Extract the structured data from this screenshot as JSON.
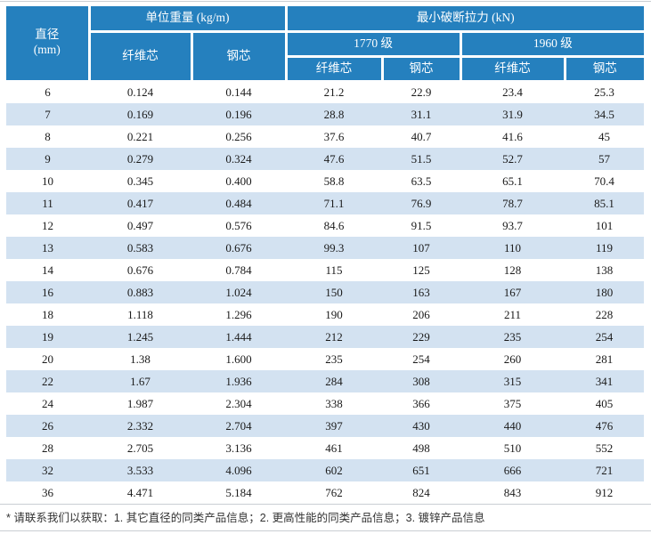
{
  "table": {
    "header": {
      "diameter_line1": "直径",
      "diameter_line2": "(mm)",
      "unit_weight": "单位重量 (kg/m)",
      "breaking_force": "最小破断拉力 (kN)",
      "grade_1770": "1770 级",
      "grade_1960": "1960 级",
      "fiber_core": "纤维芯",
      "steel_core": "钢芯"
    },
    "rows": [
      [
        "6",
        "0.124",
        "0.144",
        "21.2",
        "22.9",
        "23.4",
        "25.3"
      ],
      [
        "7",
        "0.169",
        "0.196",
        "28.8",
        "31.1",
        "31.9",
        "34.5"
      ],
      [
        "8",
        "0.221",
        "0.256",
        "37.6",
        "40.7",
        "41.6",
        "45"
      ],
      [
        "9",
        "0.279",
        "0.324",
        "47.6",
        "51.5",
        "52.7",
        "57"
      ],
      [
        "10",
        "0.345",
        "0.400",
        "58.8",
        "63.5",
        "65.1",
        "70.4"
      ],
      [
        "11",
        "0.417",
        "0.484",
        "71.1",
        "76.9",
        "78.7",
        "85.1"
      ],
      [
        "12",
        "0.497",
        "0.576",
        "84.6",
        "91.5",
        "93.7",
        "101"
      ],
      [
        "13",
        "0.583",
        "0.676",
        "99.3",
        "107",
        "110",
        "119"
      ],
      [
        "14",
        "0.676",
        "0.784",
        "115",
        "125",
        "128",
        "138"
      ],
      [
        "16",
        "0.883",
        "1.024",
        "150",
        "163",
        "167",
        "180"
      ],
      [
        "18",
        "1.118",
        "1.296",
        "190",
        "206",
        "211",
        "228"
      ],
      [
        "19",
        "1.245",
        "1.444",
        "212",
        "229",
        "235",
        "254"
      ],
      [
        "20",
        "1.38",
        "1.600",
        "235",
        "254",
        "260",
        "281"
      ],
      [
        "22",
        "1.67",
        "1.936",
        "284",
        "308",
        "315",
        "341"
      ],
      [
        "24",
        "1.987",
        "2.304",
        "338",
        "366",
        "375",
        "405"
      ],
      [
        "26",
        "2.332",
        "2.704",
        "397",
        "430",
        "440",
        "476"
      ],
      [
        "28",
        "2.705",
        "3.136",
        "461",
        "498",
        "510",
        "552"
      ],
      [
        "32",
        "3.533",
        "4.096",
        "602",
        "651",
        "666",
        "721"
      ],
      [
        "36",
        "4.471",
        "5.184",
        "762",
        "824",
        "843",
        "912"
      ]
    ]
  },
  "footnote": "* 请联系我们以获取：1. 其它直径的同类产品信息；2. 更高性能的同类产品信息；3. 镀锌产品信息",
  "colors": {
    "header_bg": "#2580be",
    "row_alt_bg": "#d3e2f1",
    "body_text": "#1a1a1a",
    "header_text": "#ffffff",
    "hairline": "#c9ced3"
  }
}
